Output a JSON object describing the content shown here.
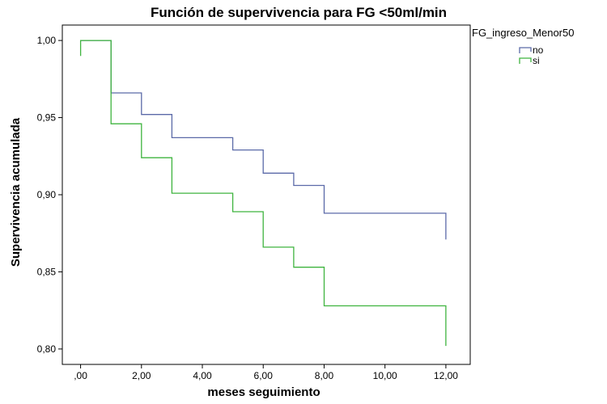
{
  "chart_data": {
    "type": "line",
    "step": true,
    "title": "Función de supervivencia para FG <50ml/min",
    "xlabel": "meses seguimiento",
    "ylabel": "Supervivencia acumulada",
    "xlim": [
      -0.6,
      12.8
    ],
    "ylim": [
      0.79,
      1.01
    ],
    "x_ticks": [
      0,
      2,
      4,
      6,
      8,
      10,
      12
    ],
    "x_tick_labels": [
      ",00",
      "2,00",
      "4,00",
      "6,00",
      "8,00",
      "10,00",
      "12,00"
    ],
    "y_ticks": [
      0.8,
      0.85,
      0.9,
      0.95,
      1.0
    ],
    "y_tick_labels": [
      "0,80",
      "0,85",
      "0,90",
      "0,95",
      "1,00"
    ],
    "grid": false,
    "legend": {
      "title": "FG_ingreso_Menor50",
      "placement": "top-right"
    },
    "series": [
      {
        "name": "no",
        "color": "#5b6aa8",
        "x": [
          0,
          1,
          2,
          3,
          5,
          6,
          7,
          8,
          12,
          12
        ],
        "y": [
          1.0,
          0.966,
          0.952,
          0.937,
          0.929,
          0.914,
          0.906,
          0.888,
          0.888,
          0.871
        ]
      },
      {
        "name": "si",
        "color": "#3fb43f",
        "x": [
          0,
          0,
          1,
          2,
          3,
          5,
          6,
          7,
          8,
          12,
          12
        ],
        "y": [
          0.99,
          1.0,
          0.946,
          0.924,
          0.901,
          0.889,
          0.866,
          0.853,
          0.828,
          0.828,
          0.802
        ]
      }
    ]
  }
}
